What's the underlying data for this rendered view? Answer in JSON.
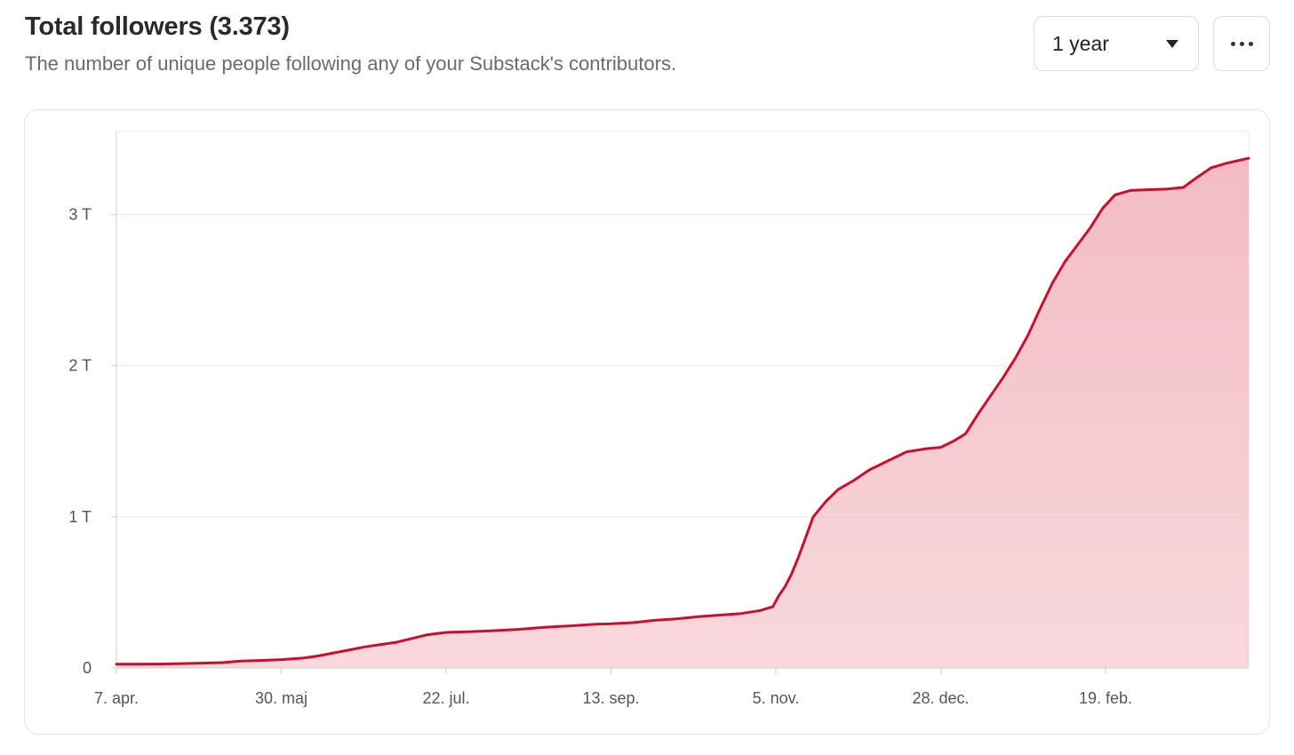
{
  "header": {
    "title": "Total followers (3.373)",
    "subtitle": "The number of unique people following any of your Substack's contributors."
  },
  "controls": {
    "range_label": "1 year",
    "more_icon": "more-horizontal-icon"
  },
  "colors": {
    "line": "#c8102e",
    "fill": "#f2b8c0",
    "grid": "#e9e9e9",
    "axis": "#cfcfcf"
  },
  "chart_data": {
    "type": "area",
    "ylim": [
      0,
      3550
    ],
    "yticks": [
      {
        "value": 0,
        "label": "0"
      },
      {
        "value": 1000,
        "label": "1 T"
      },
      {
        "value": 2000,
        "label": "2 T"
      },
      {
        "value": 3000,
        "label": "3 T"
      }
    ],
    "xlim": [
      "2023-04-07",
      "2024-04-05"
    ],
    "xticks": [
      {
        "date": "2023-04-07",
        "label": "7. apr."
      },
      {
        "date": "2023-05-30",
        "label": "30. maj"
      },
      {
        "date": "2023-07-22",
        "label": "22. jul."
      },
      {
        "date": "2023-09-13",
        "label": "13. sep."
      },
      {
        "date": "2023-11-05",
        "label": "5. nov."
      },
      {
        "date": "2023-12-28",
        "label": "28. dec."
      },
      {
        "date": "2024-02-19",
        "label": "19. feb."
      }
    ],
    "grid": true,
    "series": [
      {
        "points": [
          [
            "2023-04-07",
            25
          ],
          [
            "2023-04-21",
            26
          ],
          [
            "2023-05-01",
            30
          ],
          [
            "2023-05-11",
            35
          ],
          [
            "2023-05-17",
            45
          ],
          [
            "2023-05-24",
            50
          ],
          [
            "2023-05-30",
            55
          ],
          [
            "2023-06-06",
            65
          ],
          [
            "2023-06-11",
            80
          ],
          [
            "2023-06-16",
            100
          ],
          [
            "2023-06-21",
            120
          ],
          [
            "2023-06-26",
            140
          ],
          [
            "2023-07-01",
            155
          ],
          [
            "2023-07-06",
            170
          ],
          [
            "2023-07-11",
            195
          ],
          [
            "2023-07-16",
            220
          ],
          [
            "2023-07-22",
            235
          ],
          [
            "2023-07-29",
            240
          ],
          [
            "2023-08-05",
            245
          ],
          [
            "2023-08-14",
            255
          ],
          [
            "2023-08-23",
            270
          ],
          [
            "2023-09-01",
            280
          ],
          [
            "2023-09-08",
            290
          ],
          [
            "2023-09-13",
            292
          ],
          [
            "2023-09-20",
            300
          ],
          [
            "2023-09-27",
            315
          ],
          [
            "2023-10-04",
            325
          ],
          [
            "2023-10-11",
            340
          ],
          [
            "2023-10-18",
            350
          ],
          [
            "2023-10-25",
            360
          ],
          [
            "2023-10-31",
            380
          ],
          [
            "2023-11-04",
            405
          ],
          [
            "2023-11-06",
            480
          ],
          [
            "2023-11-08",
            540
          ],
          [
            "2023-11-10",
            620
          ],
          [
            "2023-11-12",
            720
          ],
          [
            "2023-11-14",
            830
          ],
          [
            "2023-11-17",
            1000
          ],
          [
            "2023-11-21",
            1100
          ],
          [
            "2023-11-25",
            1180
          ],
          [
            "2023-11-30",
            1240
          ],
          [
            "2023-12-05",
            1310
          ],
          [
            "2023-12-11",
            1370
          ],
          [
            "2023-12-17",
            1430
          ],
          [
            "2023-12-23",
            1450
          ],
          [
            "2023-12-28",
            1460
          ],
          [
            "2024-01-01",
            1500
          ],
          [
            "2024-01-05",
            1550
          ],
          [
            "2024-01-09",
            1680
          ],
          [
            "2024-01-13",
            1800
          ],
          [
            "2024-01-17",
            1920
          ],
          [
            "2024-01-21",
            2050
          ],
          [
            "2024-01-25",
            2200
          ],
          [
            "2024-01-29",
            2380
          ],
          [
            "2024-02-02",
            2550
          ],
          [
            "2024-02-06",
            2690
          ],
          [
            "2024-02-10",
            2800
          ],
          [
            "2024-02-14",
            2910
          ],
          [
            "2024-02-18",
            3040
          ],
          [
            "2024-02-22",
            3130
          ],
          [
            "2024-02-27",
            3160
          ],
          [
            "2024-03-04",
            3165
          ],
          [
            "2024-03-10",
            3170
          ],
          [
            "2024-03-15",
            3180
          ],
          [
            "2024-03-19",
            3240
          ],
          [
            "2024-03-24",
            3310
          ],
          [
            "2024-03-29",
            3340
          ],
          [
            "2024-04-05",
            3373
          ]
        ]
      }
    ]
  }
}
